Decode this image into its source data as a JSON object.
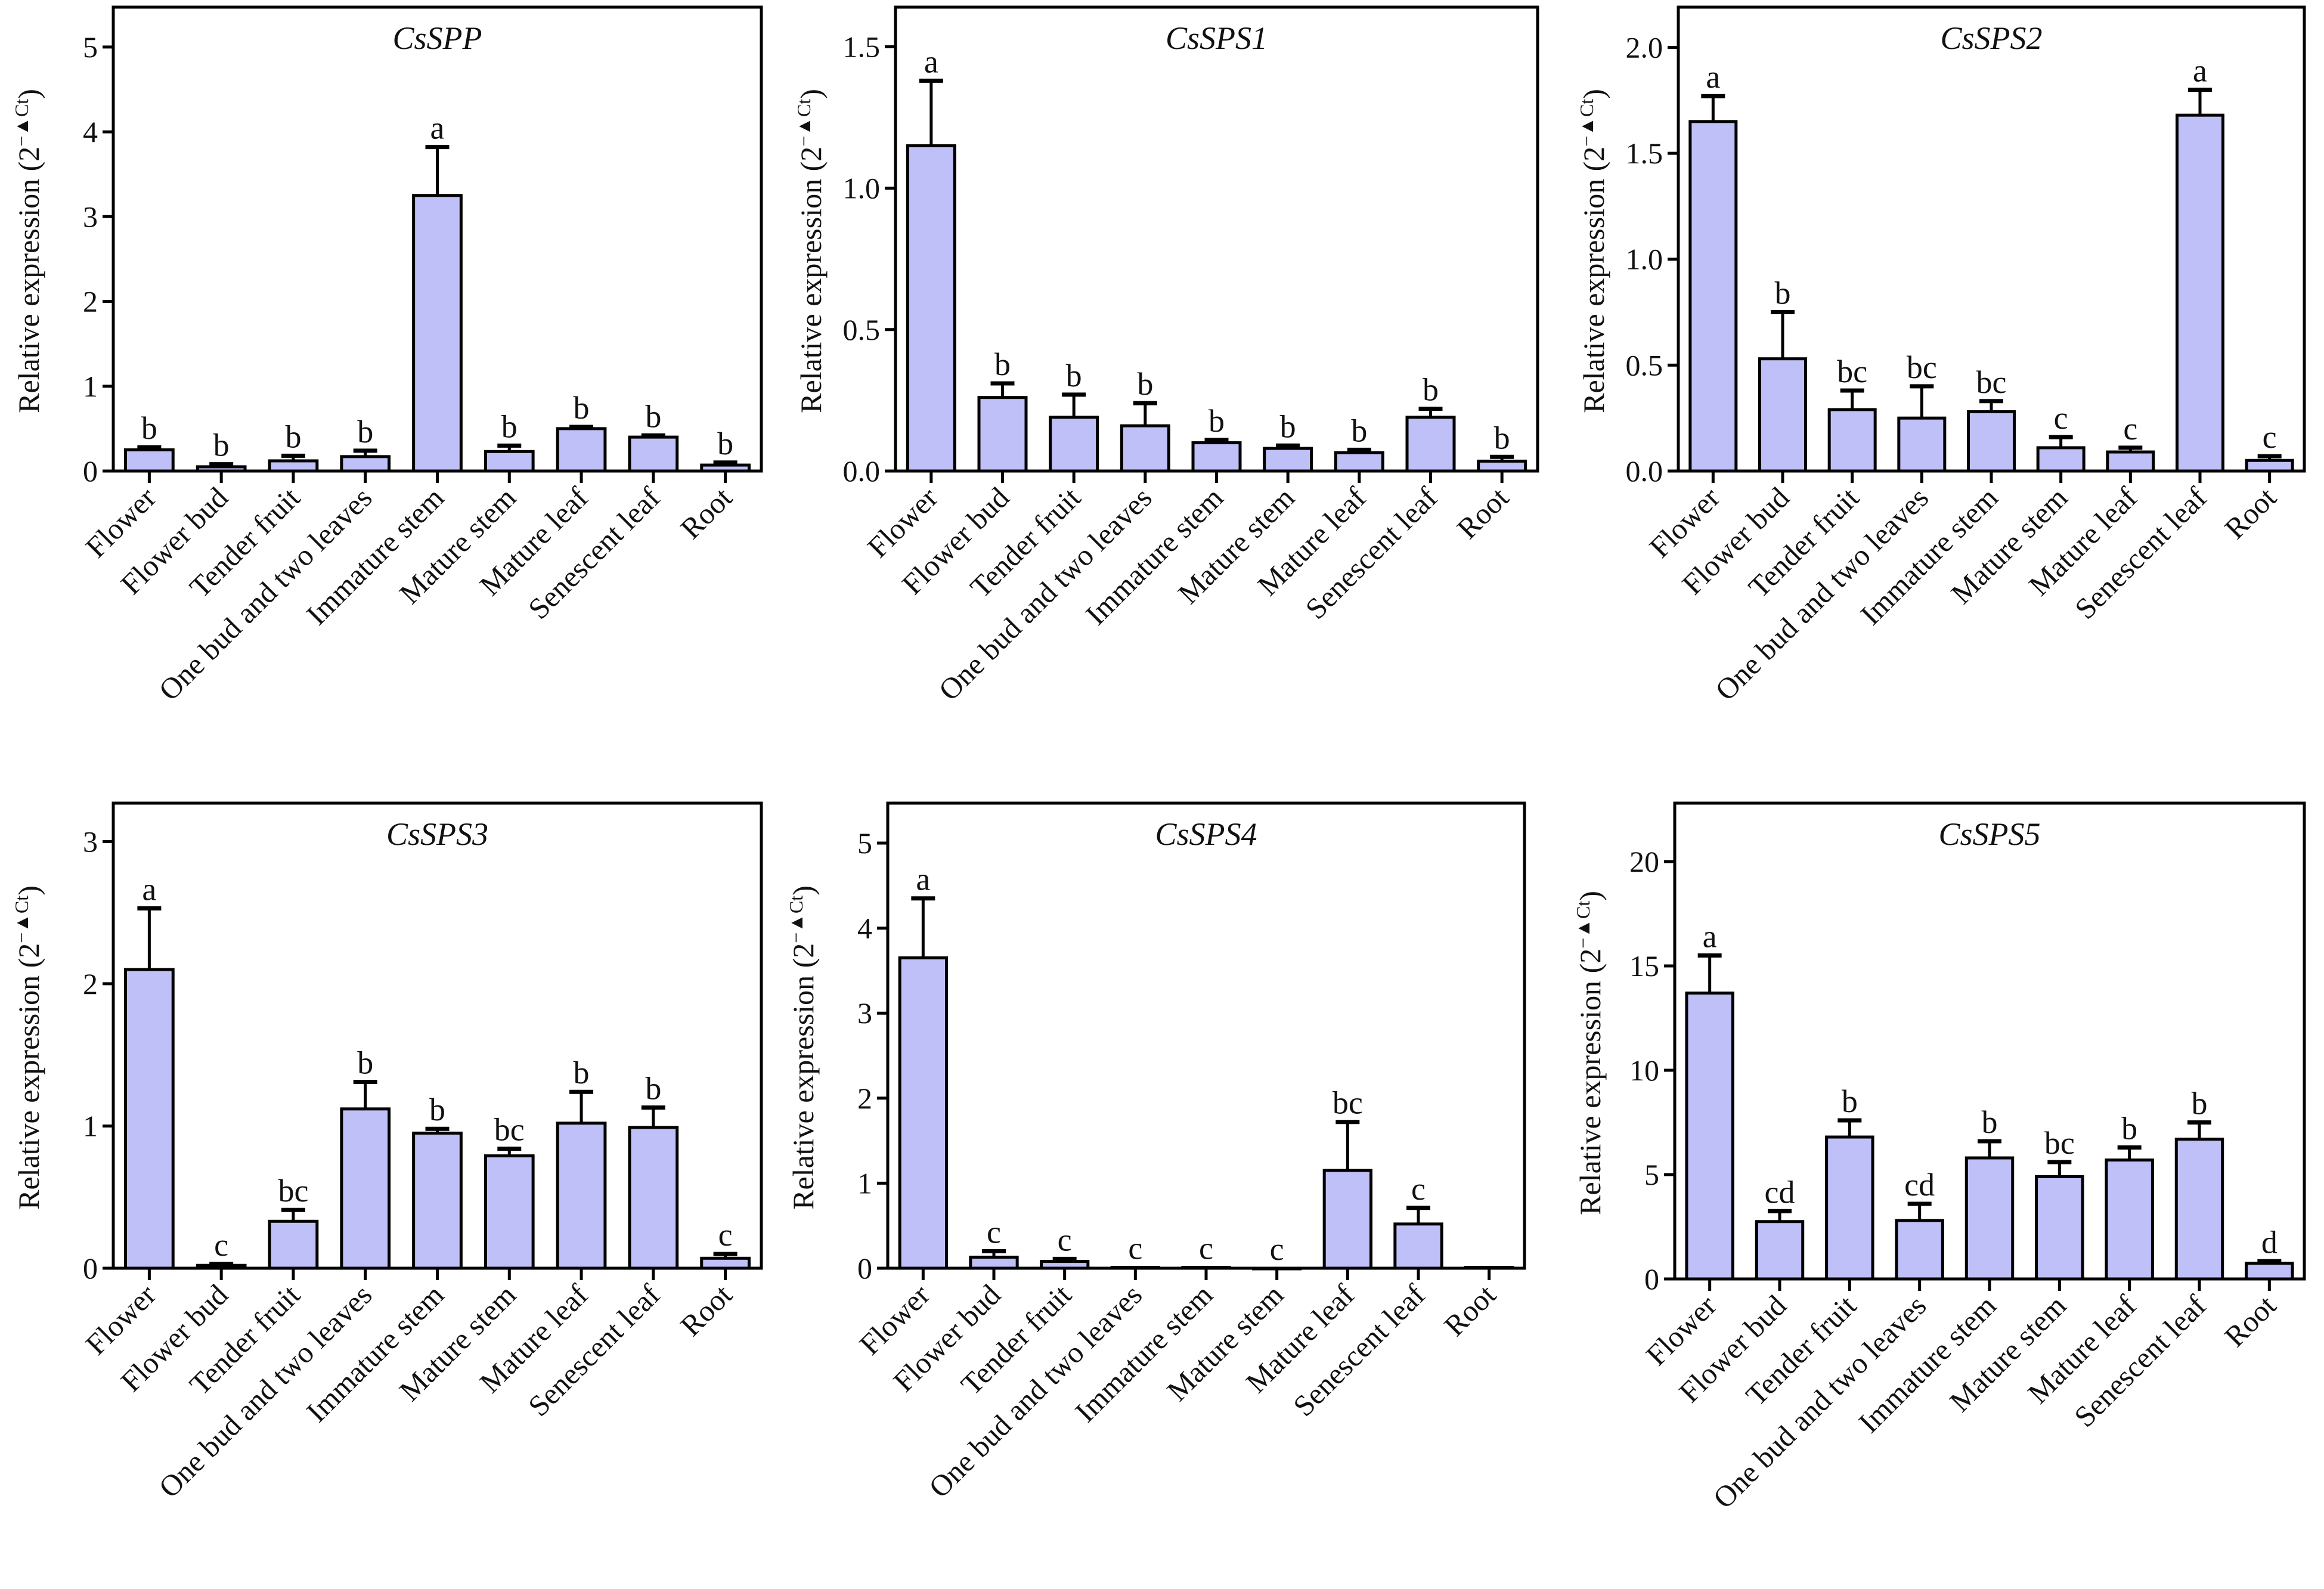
{
  "colors": {
    "bar_fill": "#c0c0f8",
    "stroke": "#000000"
  },
  "chart_data": [
    {
      "type": "bar",
      "title": "CsSPP",
      "ylabel": "Relative expression (2",
      "ylabel_sup": "−▲Ct",
      "ylabel_end": ")",
      "categories": [
        "Flower",
        "Flower bud",
        "Tender fruit",
        "One bud and two leaves",
        "Immature stem",
        "Mature stem",
        "Mature leaf",
        "Senescent leaf",
        "Root"
      ],
      "values": [
        0.25,
        0.05,
        0.12,
        0.17,
        3.25,
        0.23,
        0.5,
        0.4,
        0.07
      ],
      "errors": [
        0.03,
        0.03,
        0.06,
        0.07,
        0.57,
        0.07,
        0.02,
        0.02,
        0.03
      ],
      "letters": [
        "b",
        "b",
        "b",
        "b",
        "a",
        "b",
        "b",
        "b",
        "b"
      ],
      "ylim": [
        0,
        5.47
      ],
      "yticks": [
        "0",
        "1",
        "2",
        "3",
        "4",
        "5"
      ],
      "ytick_values": [
        0,
        1,
        2,
        3,
        4,
        5
      ]
    },
    {
      "type": "bar",
      "title": "CsSPS1",
      "ylabel": "Relative expression (2",
      "ylabel_sup": "−▲Ct",
      "ylabel_end": ")",
      "categories": [
        "Flower",
        "Flower bud",
        "Tender fruit",
        "One bud and two leaves",
        "Immature stem",
        "Mature stem",
        "Mature leaf",
        "Senescent leaf",
        "Root"
      ],
      "values": [
        1.15,
        0.26,
        0.19,
        0.16,
        0.1,
        0.08,
        0.065,
        0.19,
        0.035
      ],
      "errors": [
        0.23,
        0.05,
        0.08,
        0.08,
        0.01,
        0.01,
        0.01,
        0.03,
        0.015
      ],
      "letters": [
        "a",
        "b",
        "b",
        "b",
        "b",
        "b",
        "b",
        "b",
        "b"
      ],
      "ylim": [
        0,
        1.64
      ],
      "yticks": [
        "0.0",
        "0.5",
        "1.0",
        "1.5"
      ],
      "ytick_values": [
        0,
        0.5,
        1,
        1.5
      ]
    },
    {
      "type": "bar",
      "title": "CsSPS2",
      "ylabel": "Relative expression (2",
      "ylabel_sup": "−▲Ct",
      "ylabel_end": ")",
      "categories": [
        "Flower",
        "Flower bud",
        "Tender fruit",
        "One bud and two leaves",
        "Immature stem",
        "Mature stem",
        "Mature leaf",
        "Senescent leaf",
        "Root"
      ],
      "values": [
        1.65,
        0.53,
        0.29,
        0.25,
        0.28,
        0.11,
        0.09,
        1.68,
        0.05
      ],
      "errors": [
        0.12,
        0.22,
        0.09,
        0.15,
        0.05,
        0.05,
        0.02,
        0.12,
        0.02
      ],
      "letters": [
        "a",
        "b",
        "bc",
        "bc",
        "bc",
        "c",
        "c",
        "a",
        "c"
      ],
      "ylim": [
        0,
        2.19
      ],
      "yticks": [
        "0.0",
        "0.5",
        "1.0",
        "1.5",
        "2.0"
      ],
      "ytick_values": [
        0,
        0.5,
        1,
        1.5,
        2
      ]
    },
    {
      "type": "bar",
      "title": "CsSPS3",
      "ylabel": "Relative expression (2",
      "ylabel_sup": "−▲Ct",
      "ylabel_end": ")",
      "categories": [
        "Flower",
        "Flower bud",
        "Tender fruit",
        "One bud and two leaves",
        "Immature stem",
        "Mature stem",
        "Mature leaf",
        "Senescent leaf",
        "Root"
      ],
      "values": [
        2.1,
        0.02,
        0.33,
        1.12,
        0.95,
        0.79,
        1.02,
        0.99,
        0.07
      ],
      "errors": [
        0.43,
        0.01,
        0.08,
        0.19,
        0.03,
        0.05,
        0.22,
        0.14,
        0.03
      ],
      "letters": [
        "a",
        "c",
        "bc",
        "b",
        "b",
        "bc",
        "b",
        "b",
        "c"
      ],
      "ylim": [
        0,
        3.27
      ],
      "yticks": [
        "0",
        "1",
        "2",
        "3"
      ],
      "ytick_values": [
        0,
        1,
        2,
        3
      ]
    },
    {
      "type": "bar",
      "title": "CsSPS4",
      "ylabel": "Relative expression (2",
      "ylabel_sup": "−▲Ct",
      "ylabel_end": ")",
      "categories": [
        "Flower",
        "Flower bud",
        "Tender fruit",
        "One bud and two leaves",
        "Immature stem",
        "Mature stem",
        "Mature leaf",
        "Senescent leaf",
        "Root"
      ],
      "values": [
        3.65,
        0.13,
        0.08,
        0.01,
        0.01,
        0.0,
        1.15,
        0.52,
        0.01
      ],
      "errors": [
        0.7,
        0.07,
        0.03,
        0.0,
        0.0,
        0.0,
        0.57,
        0.19,
        0.0
      ],
      "letters": [
        "a",
        "c",
        "c",
        "c",
        "c",
        "c",
        "bc",
        "c",
        ""
      ],
      "ylim": [
        0,
        5.47
      ],
      "yticks": [
        "0",
        "1",
        "2",
        "3",
        "4",
        "5"
      ],
      "ytick_values": [
        0,
        1,
        2,
        3,
        4,
        5
      ]
    },
    {
      "type": "bar",
      "title": "CsSPS5",
      "ylabel": "Relative expression (2",
      "ylabel_sup": "−▲Ct",
      "ylabel_end": ")",
      "categories": [
        "Flower",
        "Flower bud",
        "Tender fruit",
        "One bud and two leaves",
        "Immature stem",
        "Mature stem",
        "Mature leaf",
        "Senescent leaf",
        "Root"
      ],
      "values": [
        13.7,
        2.75,
        6.8,
        2.8,
        5.8,
        4.9,
        5.7,
        6.7,
        0.75
      ],
      "errors": [
        1.8,
        0.5,
        0.8,
        0.8,
        0.8,
        0.7,
        0.6,
        0.8,
        0.1
      ],
      "letters": [
        "a",
        "cd",
        "b",
        "cd",
        "b",
        "bc",
        "b",
        "b",
        "d"
      ],
      "ylim": [
        0,
        22.8
      ],
      "yticks": [
        "0",
        "5",
        "10",
        "15",
        "20"
      ],
      "ytick_values": [
        0,
        5,
        10,
        15,
        20
      ]
    }
  ]
}
